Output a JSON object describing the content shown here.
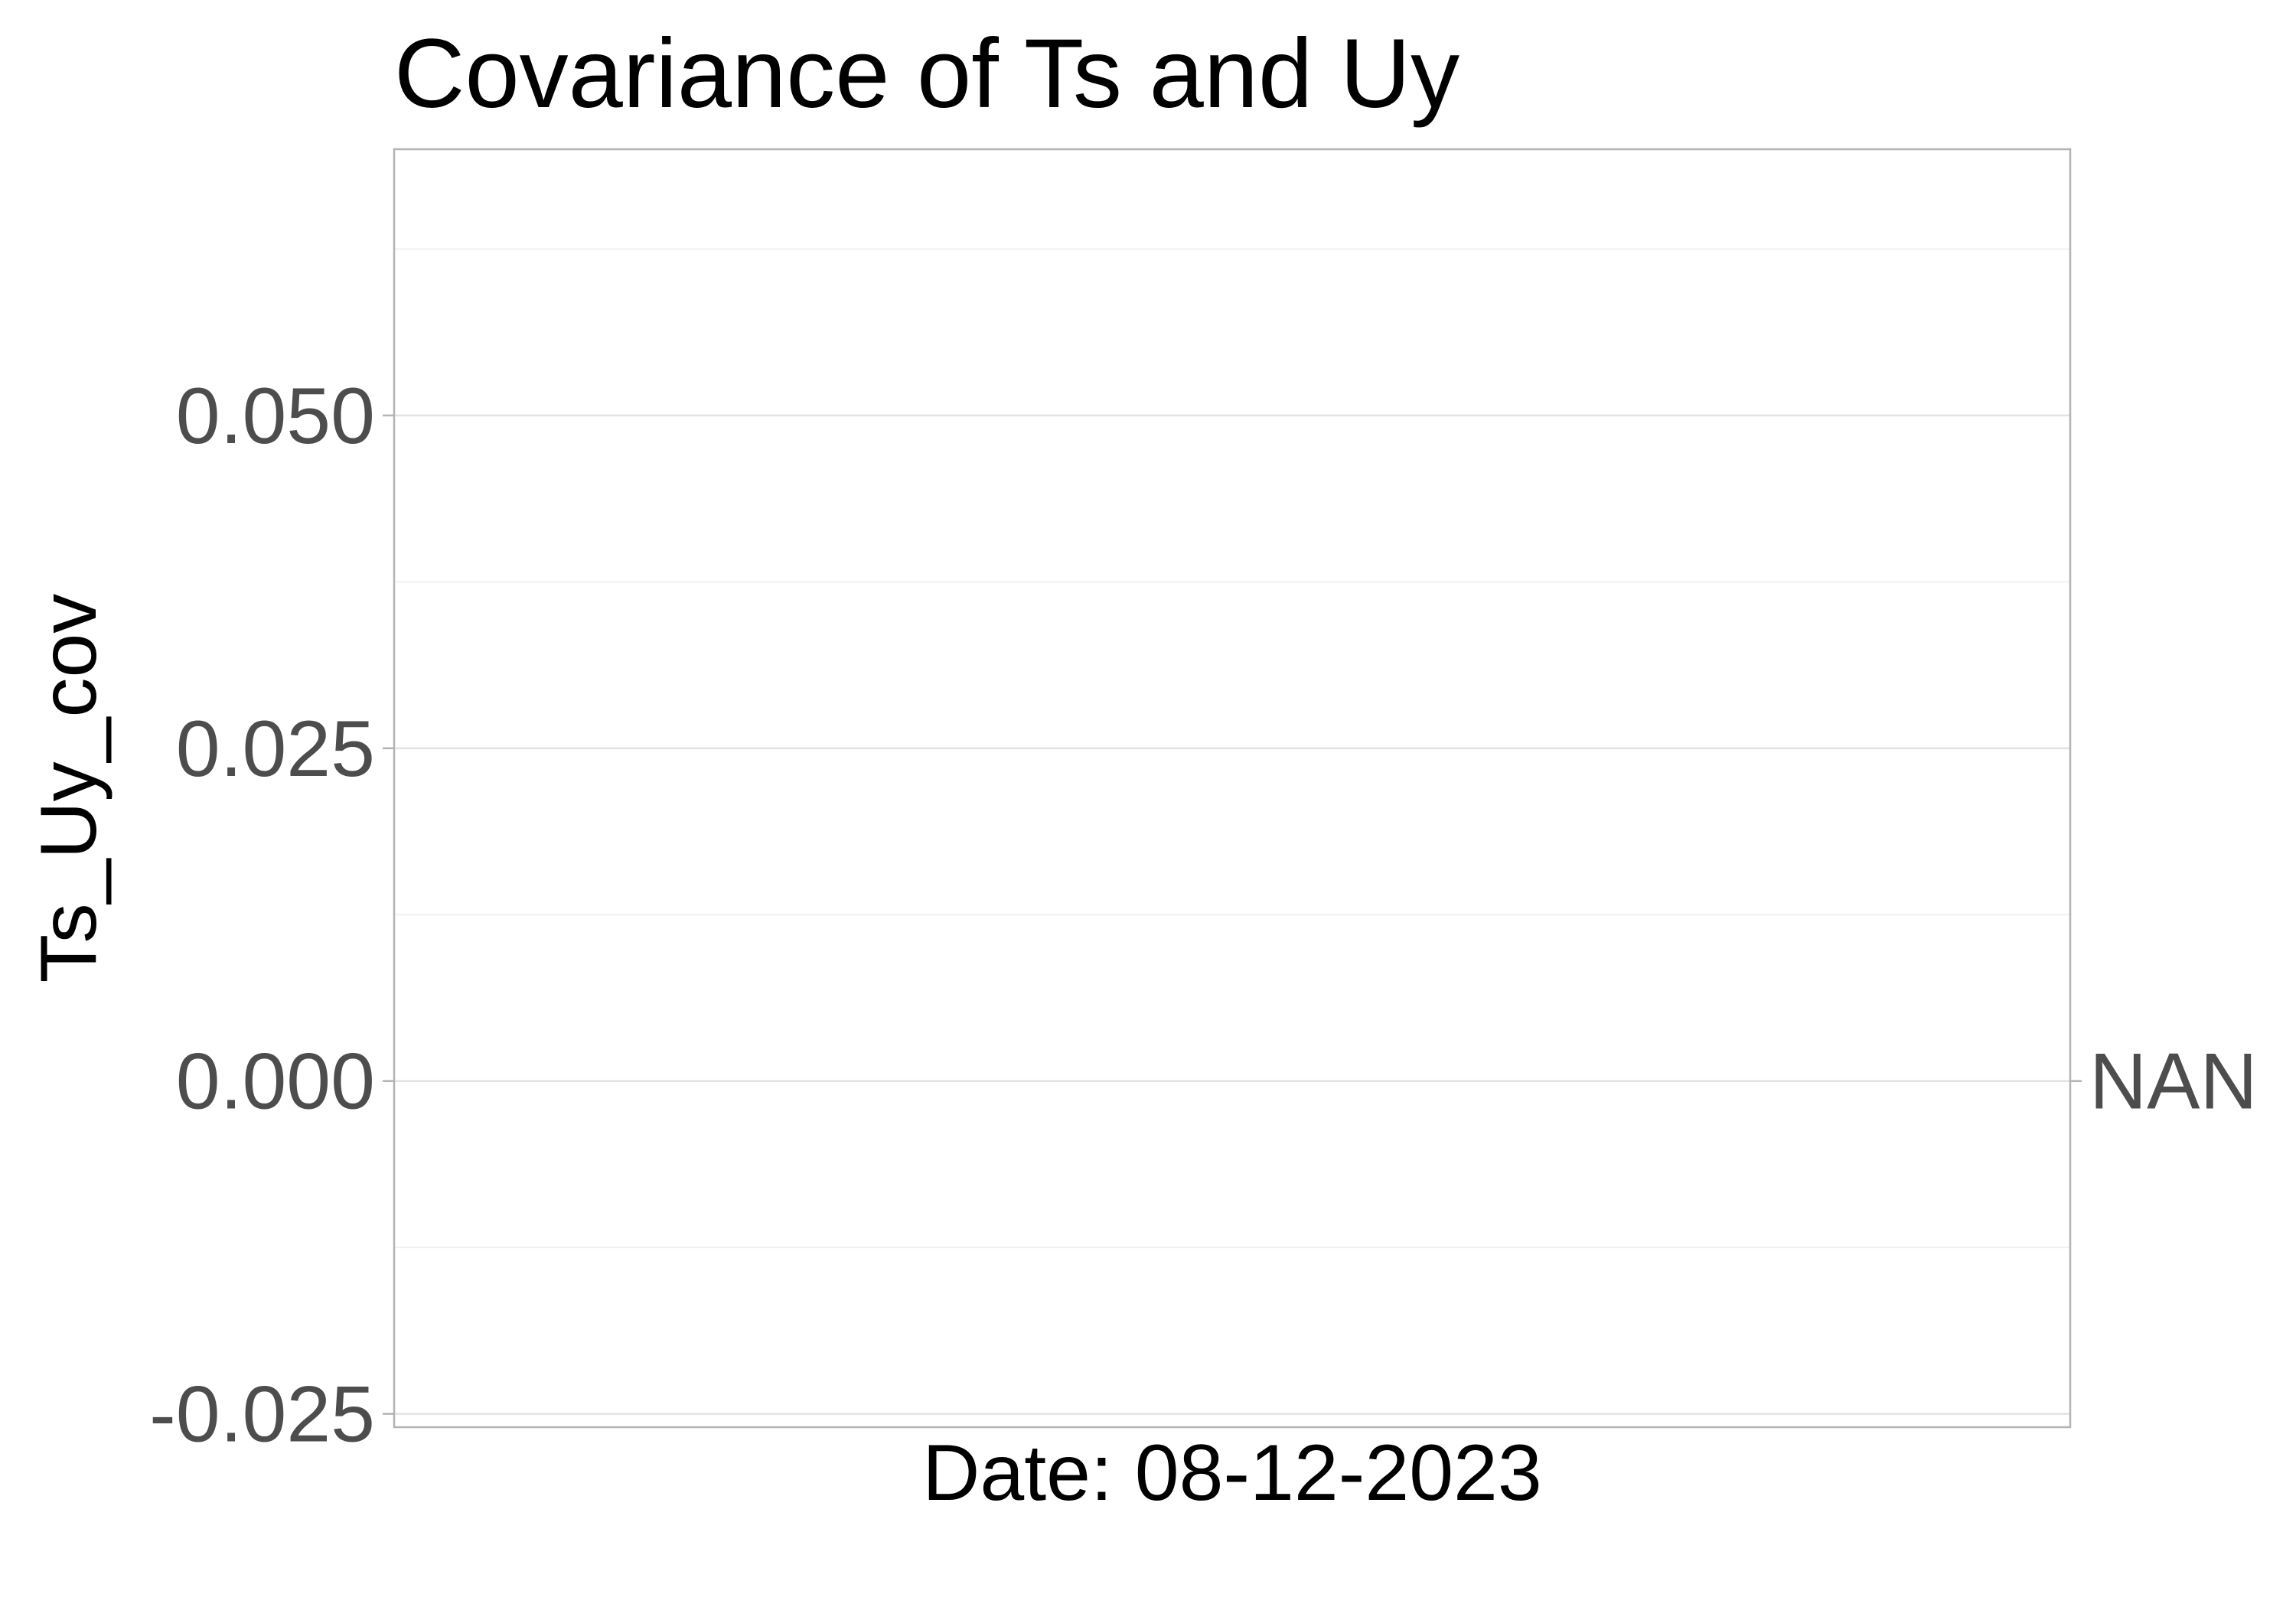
{
  "chart_data": {
    "type": "line",
    "title": "Covariance of Ts and Uy",
    "xlabel": "Date: 08-12-2023",
    "ylabel": "Ts_Uy_cov",
    "ylim": [
      -0.026,
      0.07
    ],
    "y_ticks": [
      -0.025,
      0.0,
      0.025,
      0.05
    ],
    "y_tick_labels": [
      "-0.025",
      "0.000",
      "0.025",
      "0.050"
    ],
    "y_minor": [
      -0.0125,
      0.0125,
      0.0375,
      0.0625
    ],
    "series": [],
    "side_label": "NAN",
    "side_label_value": 0.0,
    "grid": true,
    "legend": "none"
  }
}
